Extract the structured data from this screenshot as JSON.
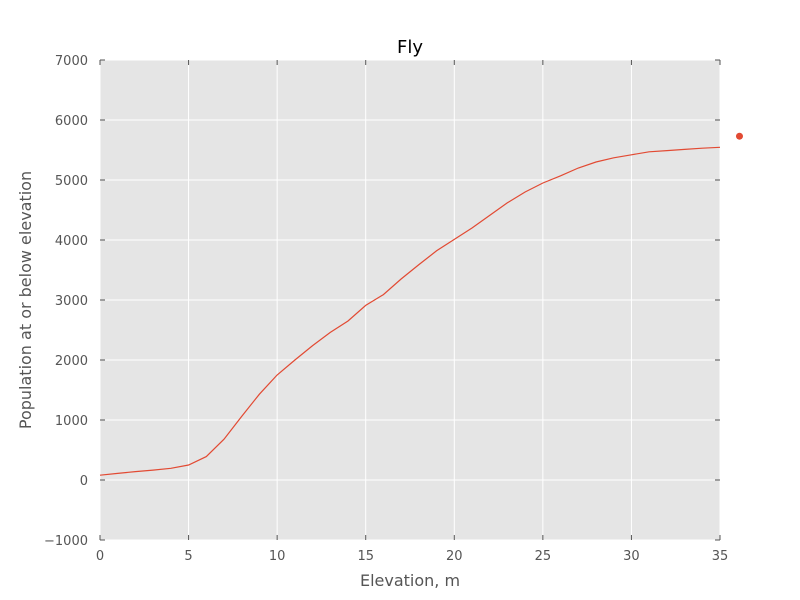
{
  "chart_data": {
    "type": "line",
    "title": "Fly",
    "xlabel": "Elevation, m",
    "ylabel": "Population at or below elevation",
    "xlim": [
      0,
      35
    ],
    "ylim": [
      -1000,
      7000
    ],
    "xticks": [
      0,
      5,
      10,
      15,
      20,
      25,
      30,
      35
    ],
    "yticks": [
      -1000,
      0,
      1000,
      2000,
      3000,
      4000,
      5000,
      6000,
      7000
    ],
    "xtick_labels": [
      "0",
      "5",
      "10",
      "15",
      "20",
      "25",
      "30",
      "35"
    ],
    "ytick_labels": [
      "−1000",
      "0",
      "1000",
      "2000",
      "3000",
      "4000",
      "5000",
      "6000",
      "7000"
    ],
    "grid": true,
    "series": [
      {
        "color": "#e24a33",
        "x": [
          0,
          1,
          2,
          3,
          4,
          5,
          6,
          7,
          8,
          9,
          10,
          11,
          12,
          13,
          14,
          15,
          16,
          17,
          18,
          19,
          20,
          21,
          22,
          23,
          24,
          25,
          26,
          27,
          28,
          29,
          30,
          31,
          32,
          33,
          34,
          35
        ],
        "y": [
          80,
          110,
          140,
          165,
          195,
          250,
          390,
          680,
          1060,
          1430,
          1750,
          2000,
          2240,
          2460,
          2650,
          2910,
          3090,
          3350,
          3590,
          3820,
          4010,
          4200,
          4410,
          4620,
          4800,
          4950,
          5070,
          5200,
          5300,
          5370,
          5420,
          5470,
          5490,
          5510,
          5530,
          5545
        ]
      }
    ],
    "outlier_point": {
      "x": 36.1,
      "y": 5730,
      "color": "#e24a33"
    }
  },
  "colors": {
    "plot_background": "#e5e5e5",
    "grid": "#ffffff",
    "line": "#e24a33"
  }
}
